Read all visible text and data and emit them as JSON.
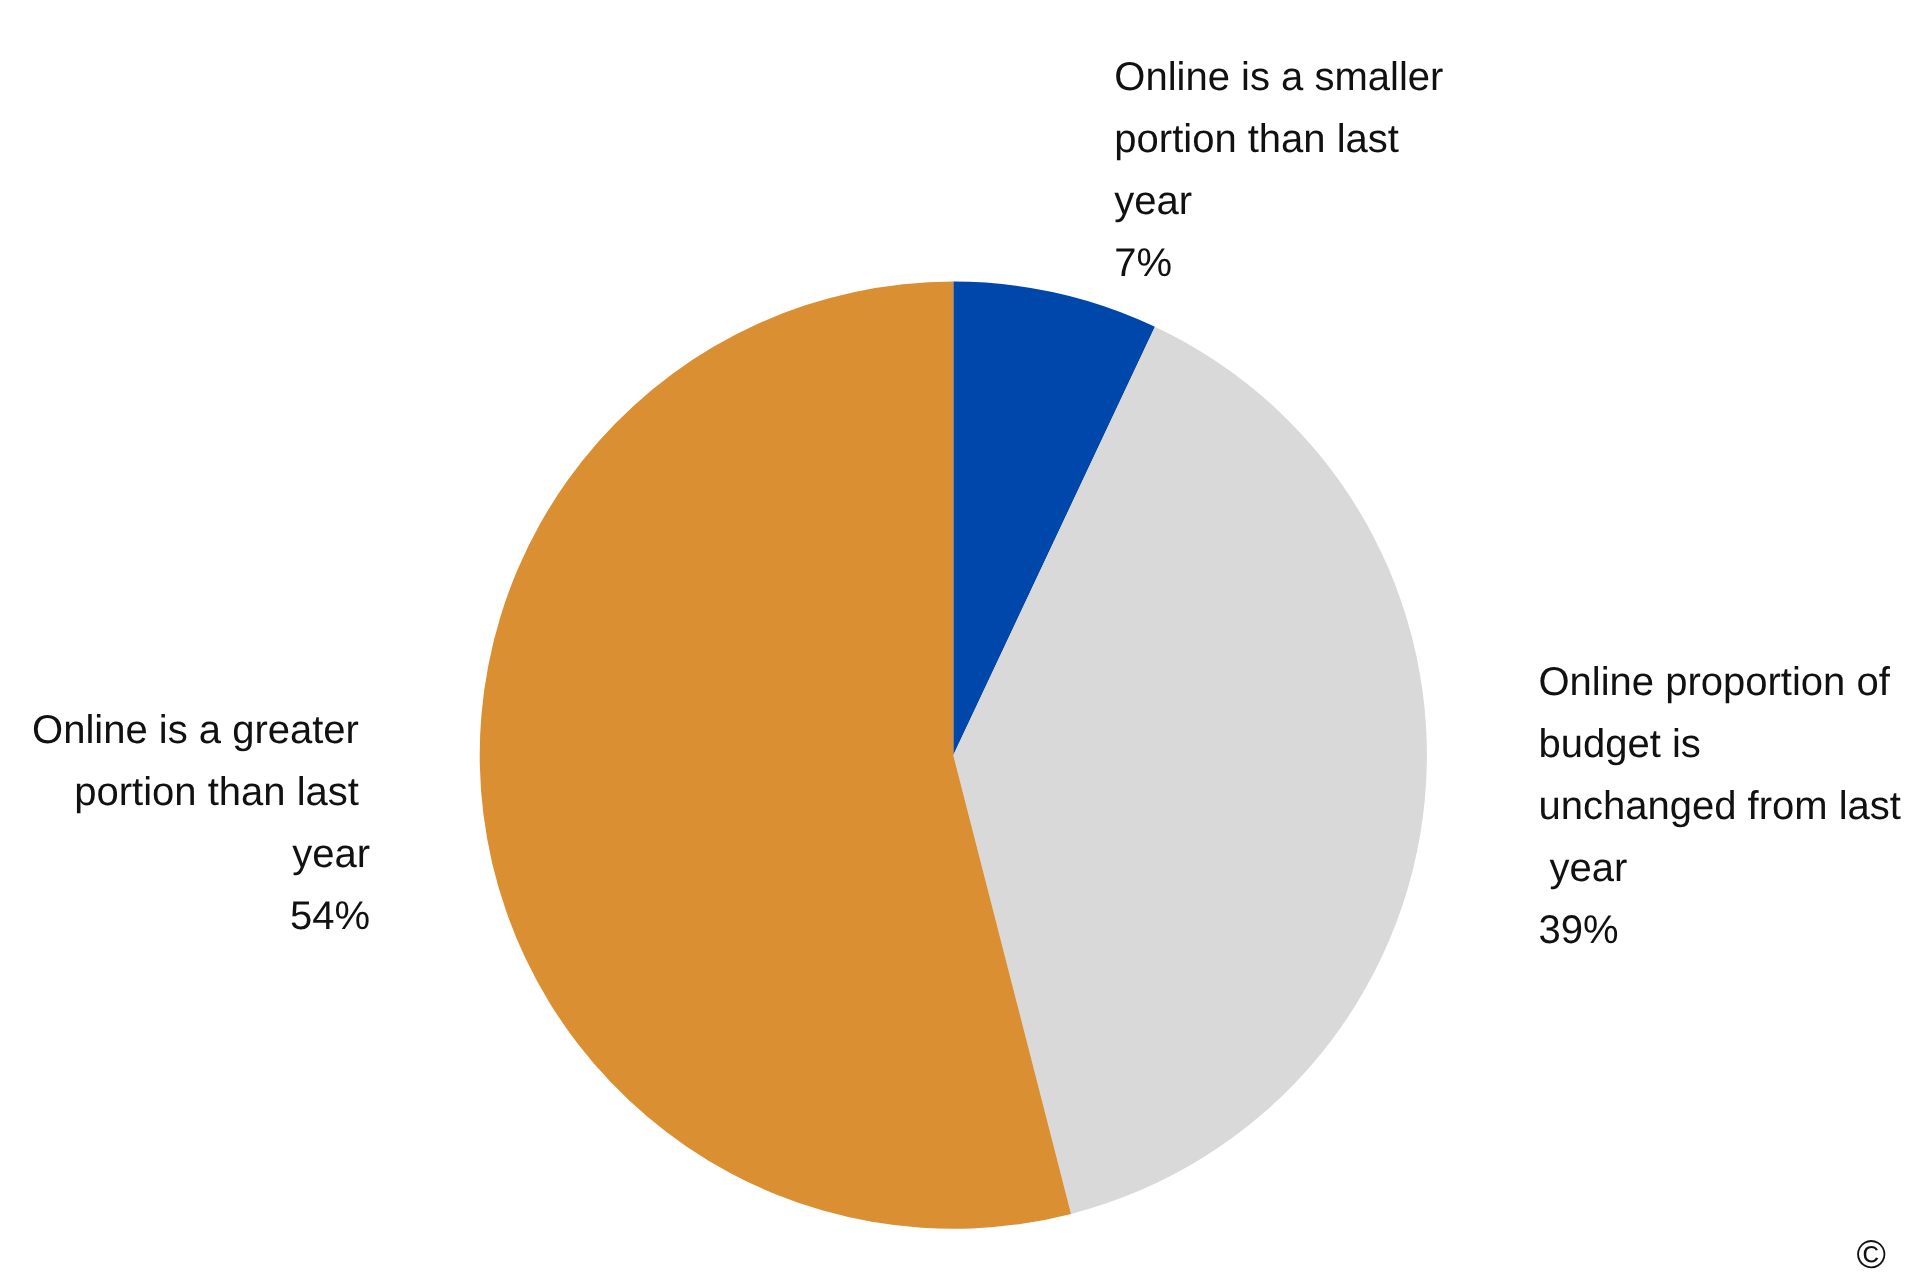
{
  "chart_data": {
    "type": "pie",
    "categories": [
      "Online is a smaller portion than last year",
      "Online proportion of budget is unchanged from last year",
      "Online is a greater portion than last year"
    ],
    "values": [
      7,
      39,
      54
    ],
    "value_labels": [
      "7%",
      "39%",
      "54%"
    ],
    "colors": [
      "#0047ab",
      "#d9d9d9",
      "#db8f33"
    ],
    "legend": false,
    "annotations": [
      "©"
    ]
  }
}
